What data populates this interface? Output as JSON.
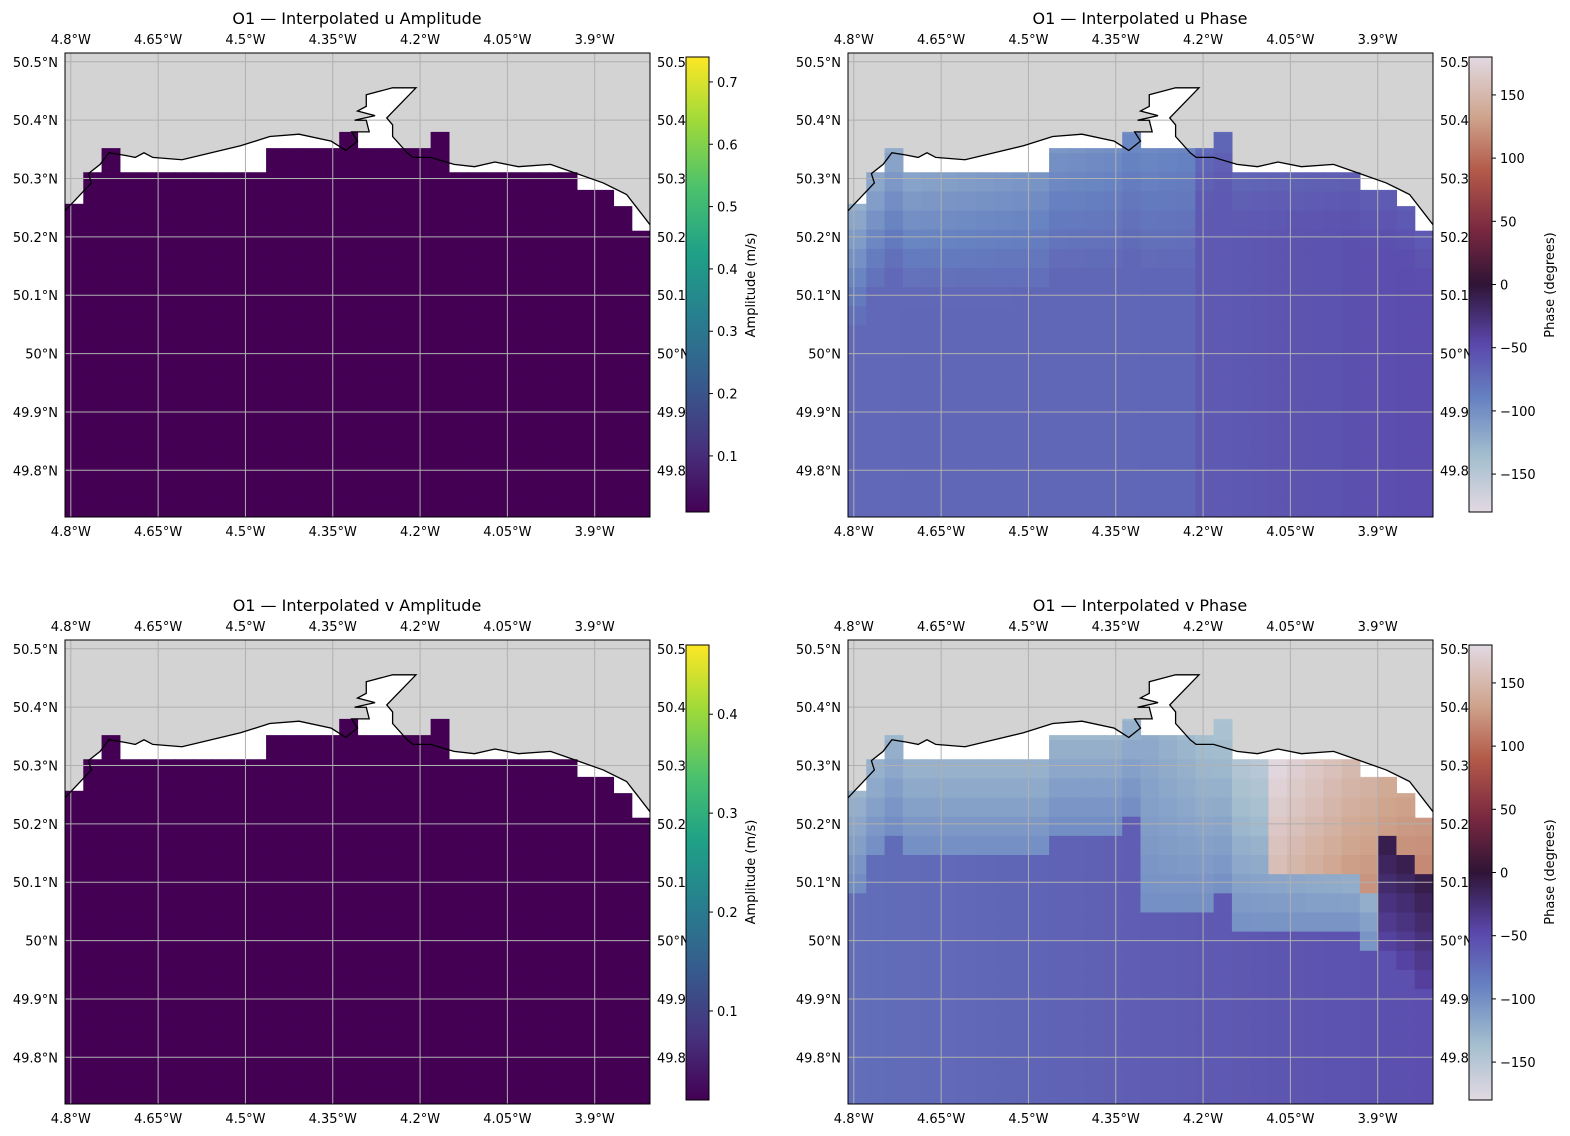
{
  "figure": {
    "background": "#ffffff"
  },
  "chart_data": [
    {
      "type": "heatmap",
      "title": "O1 — Interpolated u Amplitude",
      "field": "amplitude",
      "colormap": "viridis",
      "colorbar": {
        "label": "Amplitude (m/s)",
        "ticks": [
          "0.1",
          "0.2",
          "0.3",
          "0.4",
          "0.5",
          "0.6",
          "0.7"
        ],
        "tick_values": [
          0.1,
          0.2,
          0.3,
          0.4,
          0.5,
          0.6,
          0.7
        ],
        "vmin": 0.01,
        "vmax": 0.74
      },
      "data_value": "~0.01 (uniform across sea cells)"
    },
    {
      "type": "heatmap",
      "title": "O1 — Interpolated u Phase",
      "field": "phase",
      "colormap": "twilight",
      "colorbar": {
        "label": "Phase (degrees)",
        "ticks": [
          "150",
          "100",
          "50",
          "0",
          "−50",
          "−100",
          "−150"
        ],
        "tick_values": [
          150,
          100,
          50,
          0,
          -50,
          -100,
          -150
        ],
        "vmin": -180,
        "vmax": 180
      },
      "data_value": "≈ −65 offshore, ≈ −110 to −160 near coast (west)"
    },
    {
      "type": "heatmap",
      "title": "O1 — Interpolated v Amplitude",
      "field": "amplitude",
      "colormap": "viridis",
      "colorbar": {
        "label": "Amplitude (m/s)",
        "ticks": [
          "0.1",
          "0.2",
          "0.3",
          "0.4"
        ],
        "tick_values": [
          0.1,
          0.2,
          0.3,
          0.4
        ],
        "vmin": 0.01,
        "vmax": 0.47
      },
      "data_value": "~0.01 (uniform across sea cells)"
    },
    {
      "type": "heatmap",
      "title": "O1 — Interpolated v Phase",
      "field": "phase",
      "colormap": "twilight",
      "colorbar": {
        "label": "Phase (degrees)",
        "ticks": [
          "150",
          "100",
          "50",
          "0",
          "−50",
          "−100",
          "−150"
        ],
        "tick_values": [
          150,
          100,
          50,
          0,
          -50,
          -100,
          -150
        ],
        "vmin": -180,
        "vmax": 180
      },
      "data_value": "≈ −70 offshore; −120 to −180 and +130 to +180 near coast (east)"
    }
  ],
  "axes": {
    "lon_ticks": [
      "4.8°W",
      "4.65°W",
      "4.5°W",
      "4.35°W",
      "4.2°W",
      "4.05°W",
      "3.9°W"
    ],
    "lon_values": [
      -4.8,
      -4.65,
      -4.5,
      -4.35,
      -4.2,
      -4.05,
      -3.9
    ],
    "lat_ticks": [
      "50.5°N",
      "50.4°N",
      "50.3°N",
      "50.2°N",
      "50.1°N",
      "50°N",
      "49.9°N",
      "49.8°N"
    ],
    "lat_values": [
      50.5,
      50.4,
      50.3,
      50.2,
      50.1,
      50.0,
      49.9,
      49.8
    ],
    "right_lat_ticks": [
      "50.5",
      "50.4",
      "50.3",
      "50.2",
      "50.1",
      "50°N",
      "49.9",
      "49.8"
    ],
    "lon_range": [
      -4.81,
      -3.805
    ],
    "lat_range": [
      49.72,
      50.515
    ],
    "grid": true,
    "land_color": "#d3d3d3",
    "coast_color": "#000000",
    "grid_color": "#b0b0b0"
  }
}
